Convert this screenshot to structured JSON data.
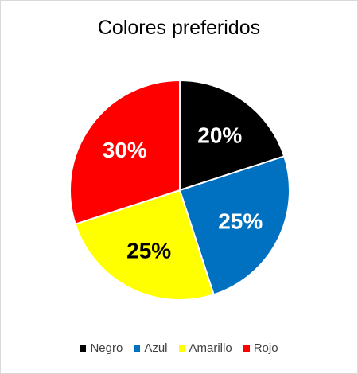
{
  "chart_data": {
    "type": "pie",
    "title": "Colores preferidos",
    "categories": [
      "Negro",
      "Azul",
      "Amarillo",
      "Rojo"
    ],
    "values": [
      20,
      25,
      25,
      30
    ],
    "data_labels": [
      "20%",
      "25%",
      "25%",
      "30%"
    ],
    "colors": [
      "#000000",
      "#0070c0",
      "#ffff00",
      "#ff0000"
    ],
    "label_colors": [
      "#ffffff",
      "#ffffff",
      "#000000",
      "#ffffff"
    ],
    "legend_position": "bottom",
    "start_angle": "12 o'clock",
    "direction": "clockwise"
  }
}
